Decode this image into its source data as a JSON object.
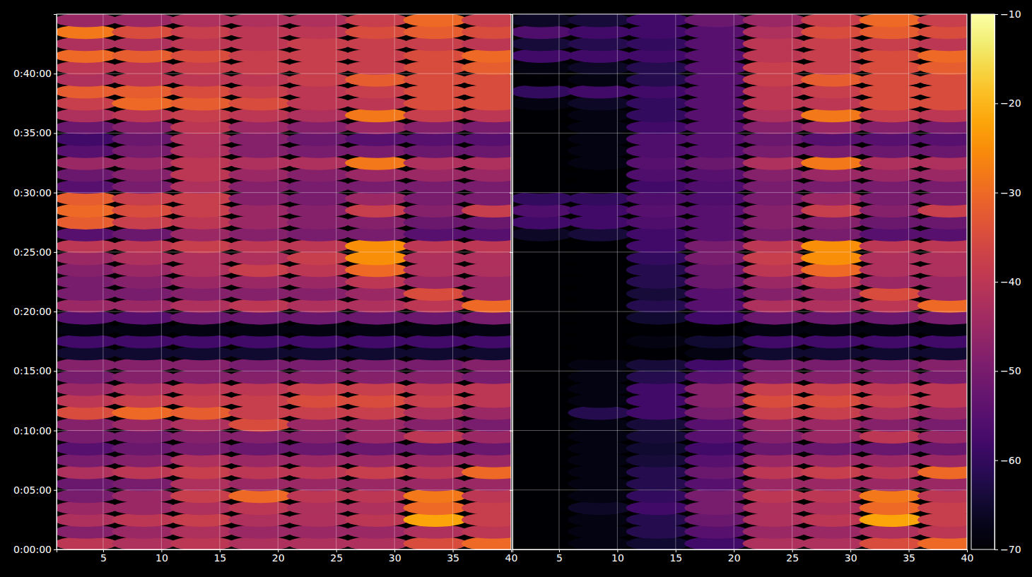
{
  "chart_data": [
    {
      "type": "heatmap",
      "grid": true,
      "tick_labels": true,
      "xlim": [
        1,
        40
      ],
      "xticks": [
        5,
        10,
        15,
        20,
        25,
        30,
        35,
        40
      ],
      "ylim": [
        0,
        2700
      ],
      "yticks": [
        {
          "value": 0,
          "label": "0:00:00"
        },
        {
          "value": 300,
          "label": "0:05:00"
        },
        {
          "value": 600,
          "label": "0:10:00"
        },
        {
          "value": 900,
          "label": "0:15:00"
        },
        {
          "value": 1200,
          "label": "0:20:00"
        },
        {
          "value": 1500,
          "label": "0:25:00"
        },
        {
          "value": 1800,
          "label": "0:30:00"
        },
        {
          "value": 2100,
          "label": "0:35:00"
        },
        {
          "value": 2400,
          "label": "0:40:00"
        }
      ],
      "zlim": [
        -70,
        -10
      ],
      "x": [
        3.5,
        8.5,
        13.5,
        18.5,
        23.5,
        28.5,
        33.5,
        38.5
      ],
      "y": [
        30,
        90,
        150,
        210,
        270,
        330,
        390,
        450,
        510,
        570,
        630,
        690,
        750,
        810,
        870,
        930,
        990,
        1050,
        1110,
        1170,
        1230,
        1290,
        1350,
        1410,
        1470,
        1530,
        1590,
        1650,
        1710,
        1770,
        1830,
        1890,
        1950,
        2010,
        2070,
        2130,
        2190,
        2250,
        2310,
        2370,
        2430,
        2490,
        2550,
        2610,
        2670
      ],
      "z": [
        [
          -40,
          -42,
          -40,
          -42,
          -42,
          -42,
          -35,
          -30
        ],
        [
          -48,
          -45,
          -42,
          -45,
          -45,
          -45,
          -42,
          -40
        ],
        [
          -42,
          -40,
          -38,
          -42,
          -42,
          -40,
          -22,
          -38
        ],
        [
          -45,
          -45,
          -42,
          -40,
          -42,
          -42,
          -30,
          -38
        ],
        [
          -50,
          -45,
          -38,
          -30,
          -40,
          -40,
          -28,
          -40
        ],
        [
          -52,
          -50,
          -42,
          -45,
          -45,
          -45,
          -45,
          -45
        ],
        [
          -42,
          -40,
          -38,
          -40,
          -40,
          -38,
          -40,
          -30
        ],
        [
          -50,
          -48,
          -42,
          -45,
          -45,
          -45,
          -45,
          -45
        ],
        [
          -55,
          -52,
          -50,
          -52,
          -52,
          -52,
          -52,
          -52
        ],
        [
          -50,
          -50,
          -48,
          -48,
          -48,
          -45,
          -40,
          -45
        ],
        [
          -48,
          -45,
          -42,
          -35,
          -45,
          -45,
          -48,
          -50
        ],
        [
          -35,
          -30,
          -32,
          -38,
          -38,
          -38,
          -42,
          -45
        ],
        [
          -40,
          -38,
          -38,
          -38,
          -35,
          -35,
          -38,
          -40
        ],
        [
          -45,
          -42,
          -40,
          -40,
          -38,
          -38,
          -40,
          -40
        ],
        [
          -50,
          -48,
          -48,
          -48,
          -48,
          -48,
          -48,
          -50
        ],
        [
          -48,
          -48,
          -48,
          -50,
          -50,
          -50,
          -50,
          -48
        ],
        [
          -65,
          -65,
          -65,
          -65,
          -65,
          -65,
          -65,
          -65
        ],
        [
          -58,
          -58,
          -58,
          -58,
          -58,
          -58,
          -58,
          -58
        ],
        [
          -68,
          -68,
          -68,
          -68,
          -68,
          -68,
          -68,
          -68
        ],
        [
          -55,
          -55,
          -52,
          -52,
          -52,
          -52,
          -52,
          -50
        ],
        [
          -45,
          -45,
          -42,
          -40,
          -42,
          -42,
          -40,
          -30
        ],
        [
          -50,
          -50,
          -48,
          -48,
          -48,
          -45,
          -35,
          -45
        ],
        [
          -50,
          -48,
          -45,
          -45,
          -45,
          -40,
          -45,
          -45
        ],
        [
          -48,
          -45,
          -42,
          -38,
          -40,
          -30,
          -42,
          -42
        ],
        [
          -45,
          -42,
          -42,
          -42,
          -38,
          -25,
          -42,
          -42
        ],
        [
          -40,
          -40,
          -38,
          -40,
          -40,
          -25,
          -40,
          -40
        ],
        [
          -55,
          -52,
          -45,
          -48,
          -50,
          -50,
          -55,
          -55
        ],
        [
          -32,
          -38,
          -40,
          -45,
          -48,
          -48,
          -52,
          -52
        ],
        [
          -30,
          -35,
          -38,
          -45,
          -48,
          -38,
          -48,
          -38
        ],
        [
          -32,
          -38,
          -38,
          -48,
          -50,
          -45,
          -50,
          -50
        ],
        [
          -55,
          -50,
          -42,
          -48,
          -50,
          -50,
          -50,
          -50
        ],
        [
          -52,
          -48,
          -40,
          -45,
          -48,
          -45,
          -45,
          -45
        ],
        [
          -45,
          -45,
          -40,
          -42,
          -42,
          -28,
          -42,
          -42
        ],
        [
          -55,
          -50,
          -42,
          -48,
          -50,
          -50,
          -52,
          -52
        ],
        [
          -58,
          -52,
          -42,
          -48,
          -52,
          -55,
          -55,
          -55
        ],
        [
          -52,
          -48,
          -40,
          -45,
          -48,
          -45,
          -48,
          -50
        ],
        [
          -42,
          -40,
          -38,
          -40,
          -42,
          -28,
          -38,
          -40
        ],
        [
          -38,
          -30,
          -32,
          -35,
          -40,
          -40,
          -35,
          -35
        ],
        [
          -32,
          -32,
          -35,
          -38,
          -40,
          -38,
          -35,
          -35
        ],
        [
          -42,
          -40,
          -40,
          -40,
          -38,
          -32,
          -35,
          -35
        ],
        [
          -40,
          -40,
          -38,
          -38,
          -38,
          -38,
          -35,
          -32
        ],
        [
          -30,
          -32,
          -35,
          -38,
          -38,
          -38,
          -35,
          -30
        ],
        [
          -42,
          -42,
          -40,
          -40,
          -38,
          -38,
          -38,
          -40
        ],
        [
          -28,
          -35,
          -38,
          -40,
          -40,
          -35,
          -32,
          -35
        ],
        [
          -45,
          -45,
          -42,
          -42,
          -42,
          -38,
          -30,
          -38
        ]
      ]
    },
    {
      "type": "heatmap",
      "grid": true,
      "tick_labels": "x",
      "xlim": [
        1,
        40
      ],
      "xticks": [
        5,
        10,
        15,
        20,
        25,
        30,
        35,
        40
      ],
      "ylim": [
        0,
        2700
      ],
      "yticks": [
        0,
        300,
        600,
        900,
        1200,
        1500,
        1800,
        2100,
        2400
      ],
      "zlim": [
        -70,
        -10
      ],
      "colorbar_ticks": [
        {
          "value": -70,
          "label": "−70"
        },
        {
          "value": -60,
          "label": "−60"
        },
        {
          "value": -50,
          "label": "−50"
        },
        {
          "value": -40,
          "label": "−40"
        },
        {
          "value": -30,
          "label": "−30"
        },
        {
          "value": -20,
          "label": "−20"
        },
        {
          "value": -10,
          "label": "−10"
        }
      ],
      "x": [
        3.5,
        8.5,
        13.5,
        18.5,
        23.5,
        28.5,
        33.5,
        38.5
      ],
      "y": [
        30,
        90,
        150,
        210,
        270,
        330,
        390,
        450,
        510,
        570,
        630,
        690,
        750,
        810,
        870,
        930,
        990,
        1050,
        1110,
        1170,
        1230,
        1290,
        1350,
        1410,
        1470,
        1530,
        1590,
        1650,
        1710,
        1770,
        1830,
        1890,
        1950,
        2010,
        2070,
        2130,
        2190,
        2250,
        2310,
        2370,
        2430,
        2490,
        2550,
        2610,
        2670
      ],
      "z": [
        [
          -70,
          -68,
          -65,
          -58,
          -42,
          -42,
          -35,
          -30
        ],
        [
          -70,
          -68,
          -62,
          -55,
          -45,
          -45,
          -42,
          -40
        ],
        [
          -70,
          -68,
          -62,
          -52,
          -42,
          -40,
          -22,
          -38
        ],
        [
          -70,
          -66,
          -58,
          -50,
          -42,
          -42,
          -30,
          -38
        ],
        [
          -70,
          -68,
          -60,
          -50,
          -40,
          -40,
          -28,
          -40
        ],
        [
          -70,
          -68,
          -62,
          -55,
          -45,
          -45,
          -45,
          -45
        ],
        [
          -70,
          -68,
          -62,
          -52,
          -40,
          -38,
          -40,
          -30
        ],
        [
          -70,
          -68,
          -64,
          -55,
          -45,
          -45,
          -45,
          -45
        ],
        [
          -70,
          -68,
          -65,
          -58,
          -52,
          -52,
          -52,
          -52
        ],
        [
          -70,
          -68,
          -64,
          -55,
          -48,
          -45,
          -40,
          -45
        ],
        [
          -70,
          -68,
          -64,
          -55,
          -45,
          -45,
          -48,
          -50
        ],
        [
          -70,
          -62,
          -58,
          -50,
          -38,
          -38,
          -42,
          -45
        ],
        [
          -70,
          -68,
          -58,
          -48,
          -35,
          -35,
          -38,
          -40
        ],
        [
          -70,
          -68,
          -58,
          -48,
          -38,
          -38,
          -40,
          -40
        ],
        [
          -70,
          -68,
          -62,
          -55,
          -48,
          -48,
          -48,
          -50
        ],
        [
          -70,
          -68,
          -64,
          -58,
          -50,
          -50,
          -50,
          -48
        ],
        [
          -70,
          -70,
          -70,
          -68,
          -65,
          -65,
          -65,
          -65
        ],
        [
          -70,
          -70,
          -68,
          -65,
          -58,
          -58,
          -58,
          -58
        ],
        [
          -70,
          -70,
          -70,
          -70,
          -68,
          -68,
          -68,
          -68
        ],
        [
          -70,
          -70,
          -65,
          -58,
          -52,
          -52,
          -52,
          -50
        ],
        [
          -70,
          -70,
          -62,
          -55,
          -42,
          -42,
          -40,
          -30
        ],
        [
          -70,
          -70,
          -64,
          -55,
          -48,
          -45,
          -35,
          -45
        ],
        [
          -70,
          -70,
          -62,
          -52,
          -45,
          -40,
          -45,
          -45
        ],
        [
          -70,
          -70,
          -62,
          -52,
          -40,
          -30,
          -42,
          -42
        ],
        [
          -70,
          -70,
          -60,
          -50,
          -38,
          -25,
          -42,
          -42
        ],
        [
          -70,
          -70,
          -58,
          -50,
          -40,
          -25,
          -40,
          -40
        ],
        [
          -66,
          -64,
          -58,
          -55,
          -50,
          -50,
          -55,
          -55
        ],
        [
          -58,
          -58,
          -56,
          -55,
          -48,
          -48,
          -52,
          -52
        ],
        [
          -56,
          -58,
          -55,
          -55,
          -48,
          -38,
          -48,
          -38
        ],
        [
          -60,
          -60,
          -56,
          -56,
          -50,
          -45,
          -50,
          -50
        ],
        [
          -70,
          -70,
          -58,
          -56,
          -50,
          -50,
          -50,
          -50
        ],
        [
          -70,
          -70,
          -56,
          -55,
          -48,
          -45,
          -45,
          -45
        ],
        [
          -70,
          -68,
          -55,
          -52,
          -42,
          -28,
          -42,
          -42
        ],
        [
          -70,
          -68,
          -56,
          -55,
          -50,
          -50,
          -52,
          -52
        ],
        [
          -70,
          -68,
          -56,
          -55,
          -52,
          -55,
          -55,
          -55
        ],
        [
          -70,
          -68,
          -58,
          -55,
          -48,
          -45,
          -48,
          -50
        ],
        [
          -70,
          -68,
          -60,
          -55,
          -42,
          -28,
          -38,
          -40
        ],
        [
          -68,
          -66,
          -60,
          -55,
          -40,
          -40,
          -35,
          -35
        ],
        [
          -60,
          -58,
          -58,
          -55,
          -40,
          -38,
          -35,
          -35
        ],
        [
          -70,
          -68,
          -62,
          -55,
          -38,
          -32,
          -35,
          -35
        ],
        [
          -68,
          -66,
          -62,
          -55,
          -38,
          -38,
          -35,
          -32
        ],
        [
          -58,
          -58,
          -58,
          -55,
          -40,
          -38,
          -35,
          -30
        ],
        [
          -64,
          -62,
          -60,
          -55,
          -40,
          -38,
          -38,
          -40
        ],
        [
          -56,
          -58,
          -58,
          -55,
          -42,
          -35,
          -32,
          -35
        ],
        [
          -66,
          -64,
          -58,
          -52,
          -45,
          -38,
          -30,
          -38
        ]
      ]
    }
  ]
}
